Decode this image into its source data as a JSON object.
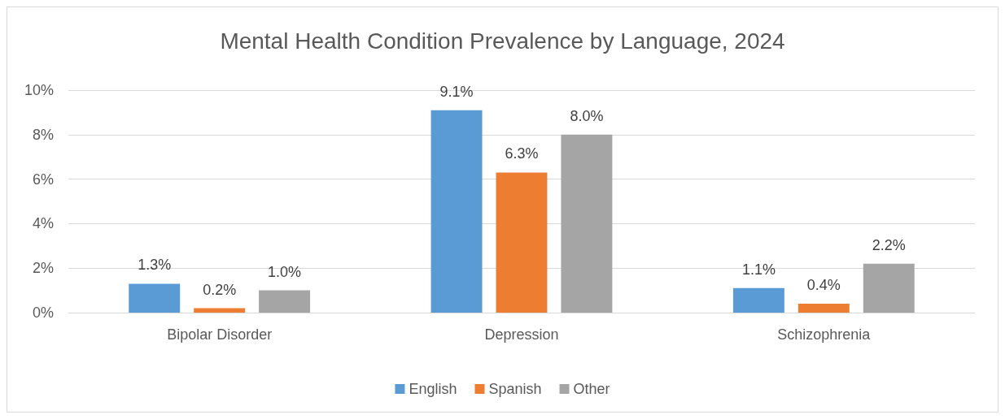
{
  "chart_data": {
    "type": "bar",
    "title": "Mental Health Condition Prevalence by Language, 2024",
    "categories": [
      "Bipolar Disorder",
      "Depression",
      "Schizophrenia"
    ],
    "series": [
      {
        "name": "English",
        "color": "#5b9bd5",
        "values": [
          1.3,
          9.1,
          1.1
        ],
        "value_labels": [
          "1.3%",
          "9.1%",
          "1.1%"
        ]
      },
      {
        "name": "Spanish",
        "color": "#ed7d31",
        "values": [
          0.2,
          6.3,
          0.4
        ],
        "value_labels": [
          "0.2%",
          "6.3%",
          "0.4%"
        ]
      },
      {
        "name": "Other",
        "color": "#a5a5a5",
        "values": [
          1.0,
          8.0,
          2.2
        ],
        "value_labels": [
          "1.0%",
          "8.0%",
          "2.2%"
        ]
      }
    ],
    "ylim": [
      0,
      10
    ],
    "yticks": [
      {
        "value": 0,
        "label": "0%"
      },
      {
        "value": 2,
        "label": "2%"
      },
      {
        "value": 4,
        "label": "4%"
      },
      {
        "value": 6,
        "label": "6%"
      },
      {
        "value": 8,
        "label": "8%"
      },
      {
        "value": 10,
        "label": "10%"
      }
    ],
    "grid": "y",
    "legend": "bottom"
  }
}
